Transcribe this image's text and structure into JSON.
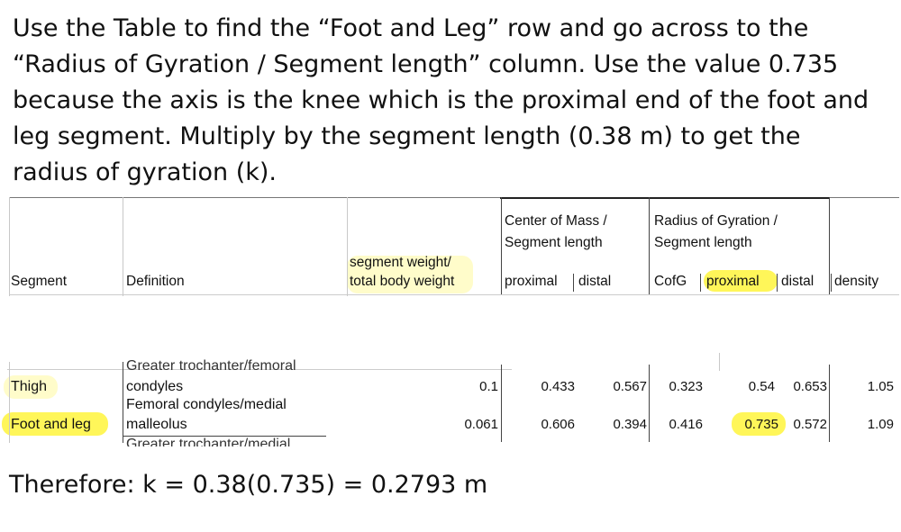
{
  "instruction": {
    "line1": "Use the Table to find the “Foot and Leg” row and go across to the",
    "line2": "“Radius of Gyration / Segment length” column. Use the value 0.735",
    "line3": "because the axis is the knee which is the proximal end of the foot and",
    "line4": "leg segment. Multiply by the segment length (0.38 m) to get the",
    "line5": "radius of gyration (k)."
  },
  "table": {
    "headers": {
      "segment": "Segment",
      "definition": "Definition",
      "weight_line1": "segment weight/",
      "weight_line2": "total body weight",
      "com_line1": "Center of Mass /",
      "com_line2": "Segment length",
      "rog_line1": "Radius of Gyration /",
      "rog_line2": "Segment length",
      "proximal": "proximal",
      "distal": "distal",
      "cofg": "CofG",
      "rog_proximal": "proximal",
      "rog_distal": "distal",
      "density": "density"
    },
    "clipped_top_definition": "Greater trochanter/femoral",
    "rows": [
      {
        "segment": "Thigh",
        "definition": "condyles",
        "weight": "0.1",
        "com_proximal": "0.433",
        "com_distal": "0.567",
        "cofg": "0.323",
        "rog_proximal": "0.54",
        "rog_distal": "0.653",
        "density": "1.05"
      },
      {
        "segment": "Foot and leg",
        "definition_line1": "Femoral condyles/medial",
        "definition_line2": "malleolus",
        "weight": "0.061",
        "com_proximal": "0.606",
        "com_distal": "0.394",
        "cofg": "0.416",
        "rog_proximal": "0.735",
        "rog_distal": "0.572",
        "density": "1.09"
      }
    ],
    "clipped_bottom_definition": "Greater trochanter/medial"
  },
  "conclusion": "Therefore:   k = 0.38(0.735) = 0.2793 m",
  "colors": {
    "highlight": "#fff53c",
    "text": "#111111"
  }
}
